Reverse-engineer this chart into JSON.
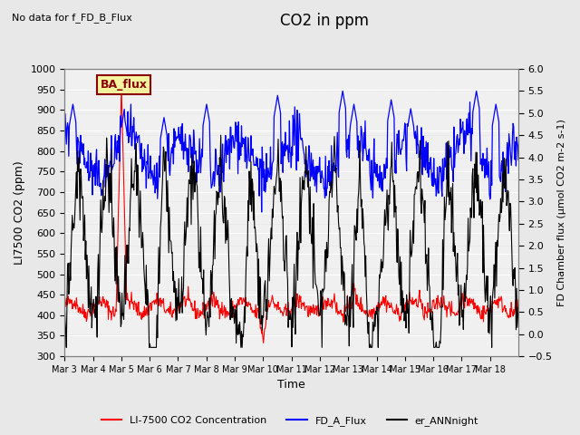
{
  "title": "CO2 in ppm",
  "top_left_note": "No data for f_FD_B_Flux",
  "legend_box_label": "BA_flux",
  "xlabel": "Time",
  "ylabel_left": "LI7500 CO2 (ppm)",
  "ylabel_right": "FD Chamber flux (μmol CO2 m-2 s-1)",
  "ylim_left": [
    300,
    1000
  ],
  "ylim_right": [
    -0.5,
    6.0
  ],
  "yticks_left": [
    300,
    350,
    400,
    450,
    500,
    550,
    600,
    650,
    700,
    750,
    800,
    850,
    900,
    950,
    1000
  ],
  "yticks_right": [
    -0.5,
    0.0,
    0.5,
    1.0,
    1.5,
    2.0,
    2.5,
    3.0,
    3.5,
    4.0,
    4.5,
    5.0,
    5.5,
    6.0
  ],
  "xtick_labels": [
    "Mar 3",
    "Mar 4",
    "Mar 5",
    "Mar 6",
    "Mar 7",
    "Mar 8",
    "Mar 9",
    "Mar 10",
    "Mar 11",
    "Mar 12",
    "Mar 13",
    "Mar 14",
    "Mar 15",
    "Mar 16",
    "Mar 17",
    "Mar 18"
  ],
  "color_red": "#FF0000",
  "color_blue": "#0000FF",
  "color_black": "#000000",
  "legend_entries": [
    "LI-7500 CO2 Concentration",
    "FD_A_Flux",
    "er_ANNnight"
  ],
  "background_color": "#E8E8E8",
  "plot_bg_color": "#F0F0F0",
  "grid_color": "#FFFFFF",
  "n_days": 16,
  "pts_per_day": 48
}
